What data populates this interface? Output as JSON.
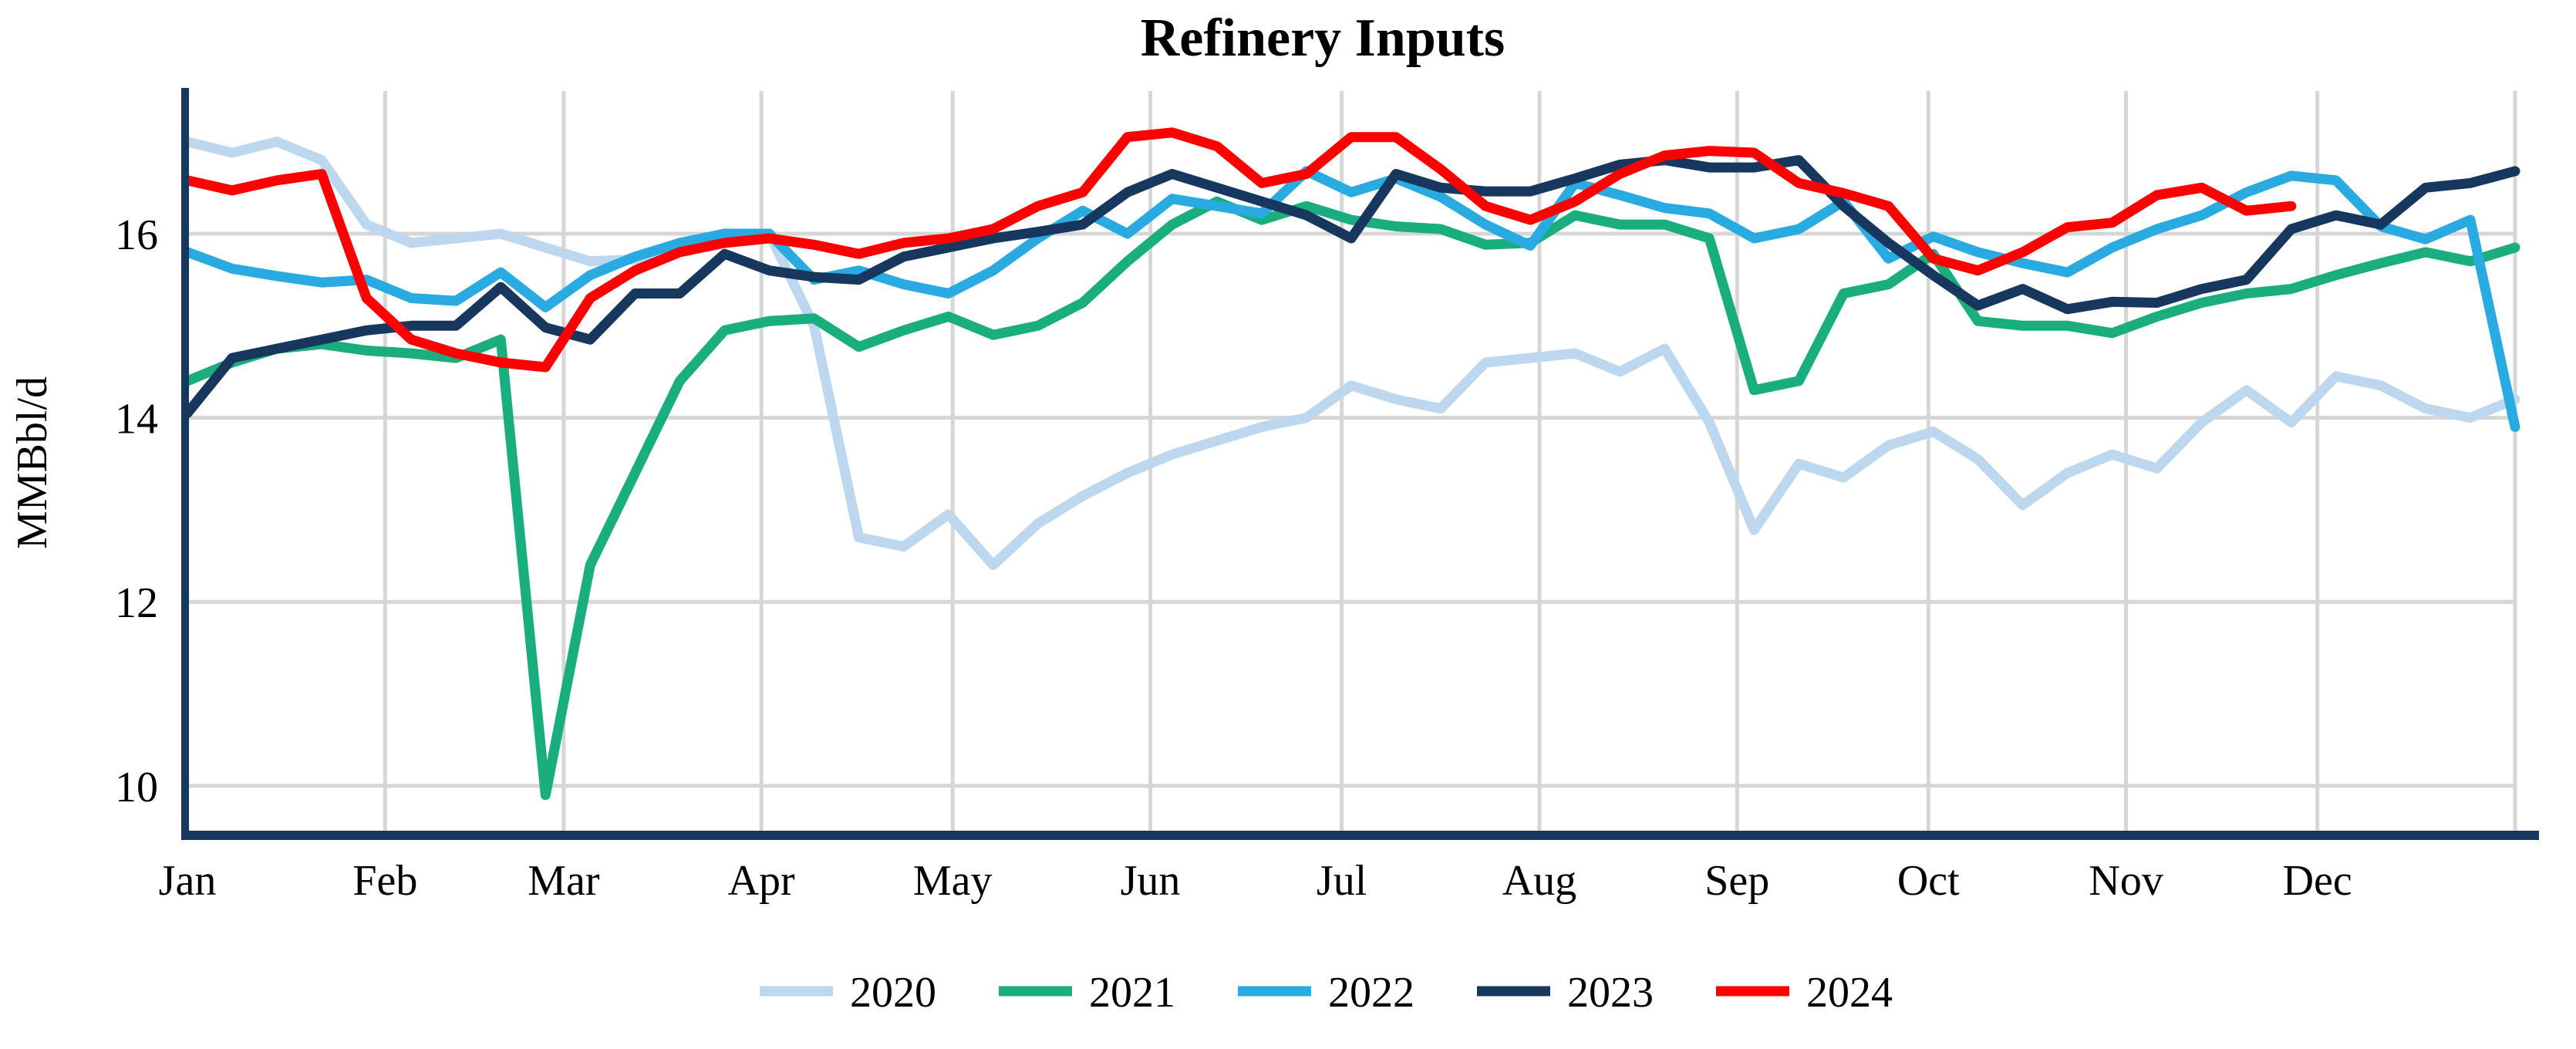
{
  "chart_data": {
    "type": "line",
    "title": "Refinery Inputs",
    "xlabel": "",
    "ylabel": "MMBbl/d",
    "x_unit": "weekly observations, Jan - Dec",
    "categories_months": [
      "Jan",
      "Feb",
      "Mar",
      "Apr",
      "May",
      "Jun",
      "Jul",
      "Aug",
      "Sep",
      "Oct",
      "Nov",
      "Dec"
    ],
    "month_start_days": [
      0,
      31,
      59,
      90,
      120,
      151,
      181,
      212,
      243,
      273,
      304,
      334,
      365
    ],
    "y_ticks": [
      10,
      12,
      14,
      16
    ],
    "ylim": [
      9.45,
      17.55
    ],
    "grid": true,
    "legend_position": "bottom",
    "colors": {
      "grid": "#D6D6D6",
      "axis": "#17375E",
      "background": "#FFFFFF"
    },
    "series": [
      {
        "name": "2020",
        "color": "#BDD7EE",
        "values": [
          17.0,
          16.88,
          17.0,
          16.8,
          16.1,
          15.9,
          15.95,
          16.0,
          15.85,
          15.7,
          15.72,
          15.8,
          15.94,
          16.0,
          15.0,
          12.7,
          12.6,
          12.95,
          12.4,
          12.85,
          13.15,
          13.4,
          13.6,
          13.75,
          13.9,
          14.0,
          14.35,
          14.2,
          14.1,
          14.6,
          14.65,
          14.7,
          14.5,
          14.75,
          13.95,
          12.78,
          13.5,
          13.35,
          13.7,
          13.85,
          13.55,
          13.05,
          13.4,
          13.6,
          13.45,
          13.95,
          14.3,
          13.95,
          14.45,
          14.35,
          14.1,
          14.0,
          14.2
        ]
      },
      {
        "name": "2021",
        "color": "#1AAE7E",
        "values": [
          14.4,
          14.6,
          14.75,
          14.8,
          14.73,
          14.7,
          14.65,
          14.85,
          9.9,
          12.4,
          13.4,
          14.4,
          14.95,
          15.05,
          15.08,
          14.77,
          14.95,
          15.1,
          14.9,
          15.0,
          15.25,
          15.7,
          16.1,
          16.35,
          16.15,
          16.3,
          16.15,
          16.08,
          16.05,
          15.88,
          15.9,
          16.2,
          16.1,
          16.1,
          15.95,
          14.3,
          14.4,
          15.35,
          15.45,
          15.78,
          15.05,
          15.0,
          15.0,
          14.92,
          15.1,
          15.25,
          15.35,
          15.4,
          15.55,
          15.68,
          15.8,
          15.7,
          15.85
        ]
      },
      {
        "name": "2022",
        "color": "#29ABE2",
        "values": [
          15.8,
          15.62,
          15.54,
          15.47,
          15.5,
          15.3,
          15.27,
          15.58,
          15.2,
          15.55,
          15.75,
          15.9,
          16.0,
          16.0,
          15.5,
          15.6,
          15.45,
          15.35,
          15.6,
          15.95,
          16.25,
          16.0,
          16.38,
          16.3,
          16.22,
          16.68,
          16.45,
          16.6,
          16.4,
          16.1,
          15.87,
          16.55,
          16.42,
          16.28,
          16.22,
          15.95,
          16.05,
          16.35,
          15.73,
          15.97,
          15.8,
          15.68,
          15.58,
          15.85,
          16.05,
          16.2,
          16.45,
          16.63,
          16.58,
          16.08,
          15.94,
          16.15,
          13.9
        ]
      },
      {
        "name": "2023",
        "color": "#17375E",
        "values": [
          14.05,
          14.65,
          14.75,
          14.85,
          14.95,
          15.0,
          15.0,
          15.42,
          14.98,
          14.85,
          15.35,
          15.35,
          15.78,
          15.6,
          15.53,
          15.5,
          15.75,
          15.85,
          15.95,
          16.02,
          16.1,
          16.45,
          16.65,
          16.5,
          16.35,
          16.2,
          15.95,
          16.65,
          16.5,
          16.46,
          16.46,
          16.6,
          16.75,
          16.8,
          16.72,
          16.72,
          16.8,
          16.3,
          15.9,
          15.55,
          15.22,
          15.4,
          15.18,
          15.26,
          15.25,
          15.4,
          15.5,
          16.05,
          16.2,
          16.1,
          16.5,
          16.55,
          16.68
        ]
      },
      {
        "name": "2024",
        "color": "#FF0000",
        "values": [
          16.58,
          16.47,
          16.58,
          16.65,
          15.3,
          14.85,
          14.7,
          14.6,
          14.55,
          15.3,
          15.6,
          15.8,
          15.9,
          15.95,
          15.88,
          15.78,
          15.9,
          15.95,
          16.05,
          16.3,
          16.45,
          17.05,
          17.1,
          16.95,
          16.55,
          16.65,
          17.05,
          17.05,
          16.7,
          16.3,
          16.15,
          16.35,
          16.65,
          16.85,
          16.9,
          16.88,
          16.55,
          16.44,
          16.3,
          15.73,
          15.6,
          15.8,
          16.07,
          16.12,
          16.42,
          16.5,
          16.25,
          16.3
        ]
      }
    ]
  }
}
